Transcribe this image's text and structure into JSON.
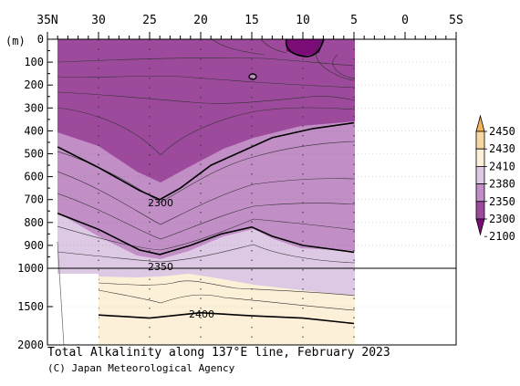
{
  "chart_data": {
    "type": "heatmap",
    "title": "Total Alkalinity along 137°E line, February 2023",
    "credit": "(C) Japan Meteorological Agency",
    "y_unit_label": "(m)",
    "x_ticks": [
      "35N",
      "30",
      "25",
      "20",
      "15",
      "10",
      "5",
      "0",
      "5S"
    ],
    "x_tick_lats": [
      35,
      30,
      25,
      20,
      15,
      10,
      5,
      0,
      -5
    ],
    "y_ticks": [
      "0",
      "100",
      "200",
      "300",
      "400",
      "500",
      "600",
      "700",
      "800",
      "900",
      "1000",
      "1500",
      "2000"
    ],
    "y_tick_depths": [
      0,
      100,
      200,
      300,
      400,
      500,
      600,
      700,
      800,
      900,
      1000,
      1500,
      2000
    ],
    "depth_axis_break": 1000,
    "xlim": [
      35,
      -5
    ],
    "ylim": [
      0,
      2000
    ],
    "data_lat_range": [
      34.2,
      5
    ],
    "station_lats": [
      30,
      25,
      20,
      15,
      10,
      5
    ],
    "colorbar": {
      "levels": [
        "2450",
        "2430",
        "2410",
        "2380",
        "2350",
        "2300",
        "2100"
      ],
      "colors": [
        "#f3b45d",
        "#f8d8a1",
        "#fdf0d8",
        "#ddc9e3",
        "#c28ec6",
        "#9d4a9c",
        "#7c0c78"
      ]
    },
    "contour_labels": [
      "2300",
      "2350",
      "2400"
    ],
    "contours_upper": [
      {
        "level": 2300,
        "bold": true,
        "points": [
          [
            34,
            470
          ],
          [
            30,
            560
          ],
          [
            26,
            660
          ],
          [
            24,
            700
          ],
          [
            22,
            650
          ],
          [
            19,
            550
          ],
          [
            16,
            490
          ],
          [
            13,
            430
          ],
          [
            9,
            390
          ],
          [
            5,
            365
          ]
        ]
      },
      {
        "level": 2350,
        "bold": true,
        "points": [
          [
            34,
            760
          ],
          [
            30,
            830
          ],
          [
            26,
            920
          ],
          [
            24,
            940
          ],
          [
            21,
            900
          ],
          [
            18,
            850
          ],
          [
            15,
            820
          ],
          [
            13,
            860
          ],
          [
            10,
            900
          ],
          [
            5,
            930
          ]
        ]
      }
    ],
    "contours_lower": [
      {
        "level": 2400,
        "bold": true,
        "points": [
          [
            30,
            1610
          ],
          [
            25,
            1650
          ],
          [
            20,
            1580
          ],
          [
            15,
            1620
          ],
          [
            10,
            1650
          ],
          [
            5,
            1720
          ]
        ]
      }
    ]
  }
}
